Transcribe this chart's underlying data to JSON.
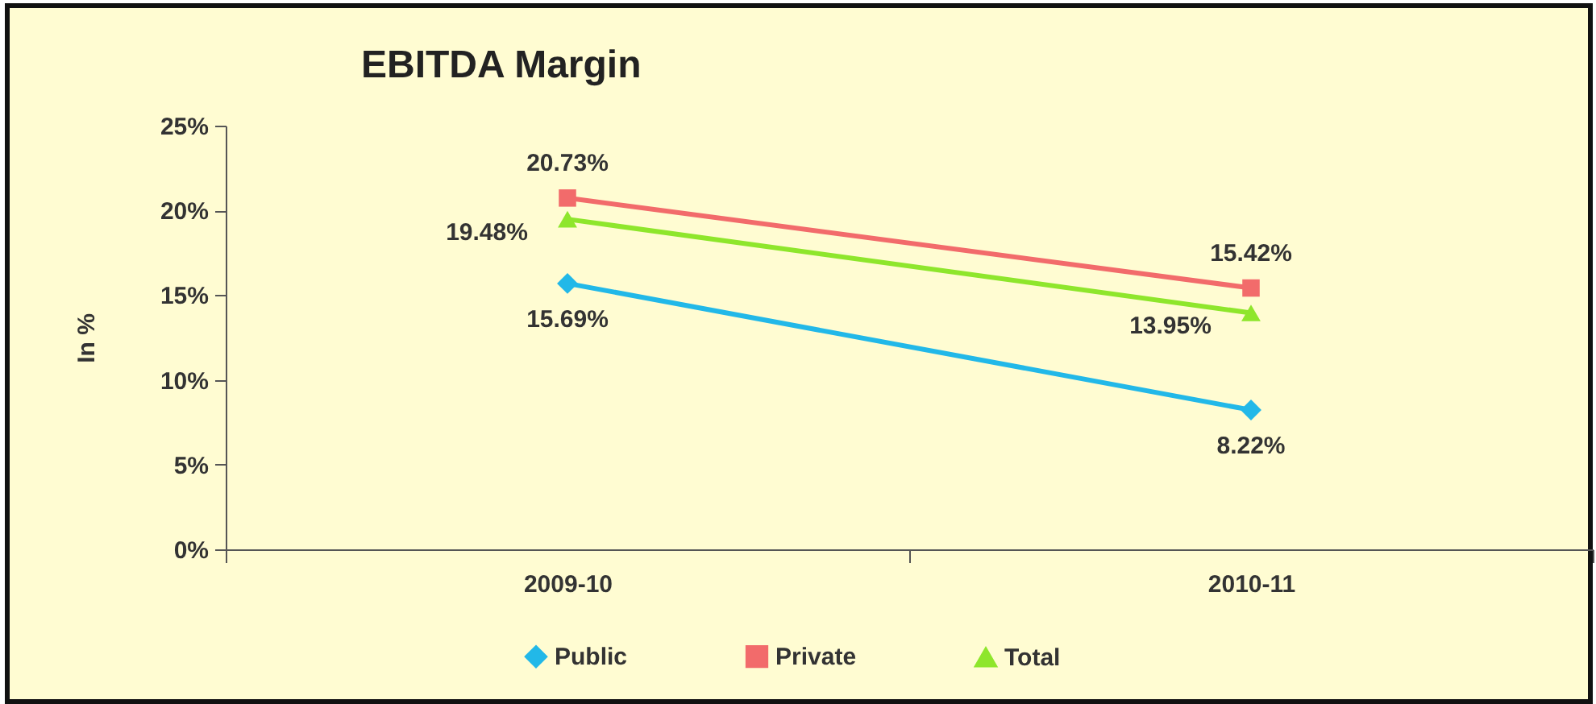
{
  "chart_data": {
    "type": "line",
    "title": "EBITDA Margin",
    "ylabel": "In %",
    "categories": [
      "2009-10",
      "2010-11"
    ],
    "series": [
      {
        "name": "Public",
        "color": "#22b8e8",
        "marker": "diamond",
        "values": [
          15.69,
          8.22
        ],
        "value_labels": [
          "15.69%",
          "8.22%"
        ]
      },
      {
        "name": "Private",
        "color": "#f26b6b",
        "marker": "square",
        "values": [
          20.73,
          15.42
        ],
        "value_labels": [
          "20.73%",
          "15.42%"
        ]
      },
      {
        "name": "Total",
        "color": "#8ee62c",
        "marker": "triangle",
        "values": [
          19.48,
          13.95
        ],
        "value_labels": [
          "19.48%",
          "13.95%"
        ]
      }
    ],
    "ylim": [
      0,
      25
    ],
    "yticks": [
      {
        "value": 0,
        "label": "0%"
      },
      {
        "value": 5,
        "label": "5%"
      },
      {
        "value": 10,
        "label": "10%"
      },
      {
        "value": 15,
        "label": "15%"
      },
      {
        "value": 20,
        "label": "20%"
      },
      {
        "value": 25,
        "label": "25%"
      }
    ],
    "legend": "bottom"
  }
}
